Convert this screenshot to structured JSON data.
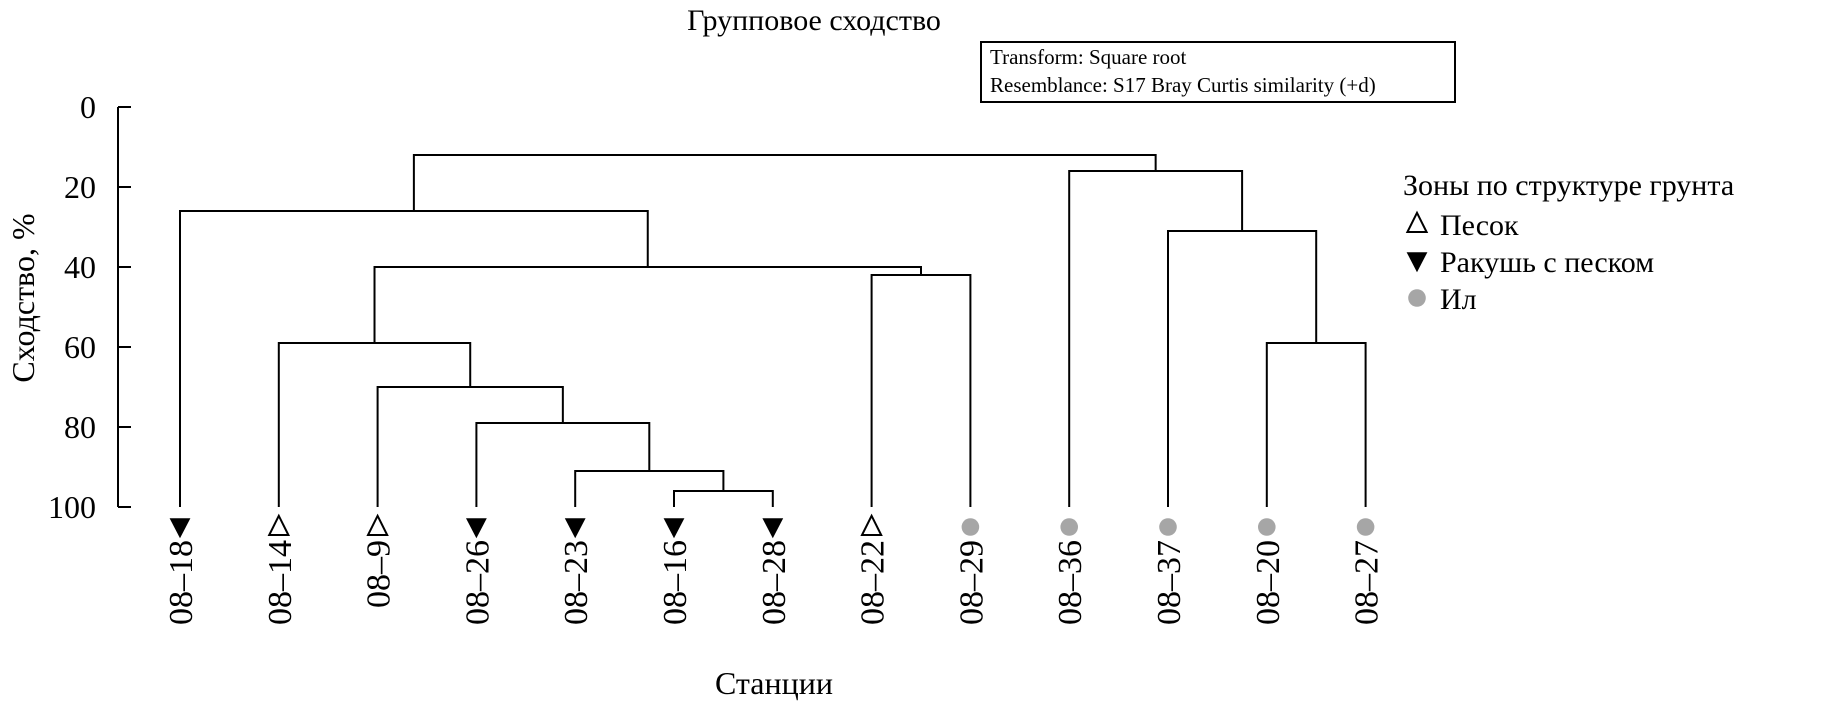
{
  "chart_data": {
    "type": "dendrogram",
    "title": "Групповое сходство",
    "info_box": [
      "Transform: Square root",
      "Resemblance: S17 Bray Curtis similarity (+d)"
    ],
    "ylabel": "Сходство, %",
    "xlabel": "Станции",
    "ylim": [
      0,
      100
    ],
    "yticks": [
      "0",
      "20",
      "40",
      "60",
      "80",
      "100"
    ],
    "leaves": [
      {
        "label": "08–18",
        "zone": "shell"
      },
      {
        "label": "08–14",
        "zone": "sand"
      },
      {
        "label": "08–9",
        "zone": "sand"
      },
      {
        "label": "08–26",
        "zone": "shell"
      },
      {
        "label": "08–23",
        "zone": "shell"
      },
      {
        "label": "08–16",
        "zone": "shell"
      },
      {
        "label": "08–28",
        "zone": "shell"
      },
      {
        "label": "08–22",
        "zone": "sand"
      },
      {
        "label": "08–29",
        "zone": "silt"
      },
      {
        "label": "08–36",
        "zone": "silt"
      },
      {
        "label": "08–37",
        "zone": "silt"
      },
      {
        "label": "08–20",
        "zone": "silt"
      },
      {
        "label": "08–27",
        "zone": "silt"
      }
    ],
    "merges": [
      {
        "a": [
          "leaf",
          5
        ],
        "b": [
          "leaf",
          6
        ],
        "similarity": 96
      },
      {
        "a": [
          "leaf",
          4
        ],
        "b": [
          "node",
          0
        ],
        "similarity": 91
      },
      {
        "a": [
          "leaf",
          3
        ],
        "b": [
          "node",
          1
        ],
        "similarity": 79
      },
      {
        "a": [
          "leaf",
          2
        ],
        "b": [
          "node",
          2
        ],
        "similarity": 70
      },
      {
        "a": [
          "leaf",
          1
        ],
        "b": [
          "node",
          3
        ],
        "similarity": 59
      },
      {
        "a": [
          "leaf",
          7
        ],
        "b": [
          "leaf",
          8
        ],
        "similarity": 42
      },
      {
        "a": [
          "node",
          4
        ],
        "b": [
          "node",
          5
        ],
        "similarity": 40
      },
      {
        "a": [
          "leaf",
          0
        ],
        "b": [
          "node",
          6
        ],
        "similarity": 26
      },
      {
        "a": [
          "leaf",
          11
        ],
        "b": [
          "leaf",
          12
        ],
        "similarity": 59
      },
      {
        "a": [
          "leaf",
          10
        ],
        "b": [
          "node",
          8
        ],
        "similarity": 31
      },
      {
        "a": [
          "leaf",
          9
        ],
        "b": [
          "node",
          9
        ],
        "similarity": 16
      },
      {
        "a": [
          "node",
          7
        ],
        "b": [
          "node",
          10
        ],
        "similarity": 12
      }
    ],
    "legend": {
      "title": "Зоны по структуре грунта",
      "position": "right",
      "items": [
        {
          "key": "sand",
          "label": "Песок",
          "marker": "open-triangle-up"
        },
        {
          "key": "shell",
          "label": "Ракушь с песком",
          "marker": "filled-triangle-down"
        },
        {
          "key": "silt",
          "label": "Ил",
          "marker": "grey-circle",
          "color": "#a6a6a6"
        }
      ]
    }
  }
}
